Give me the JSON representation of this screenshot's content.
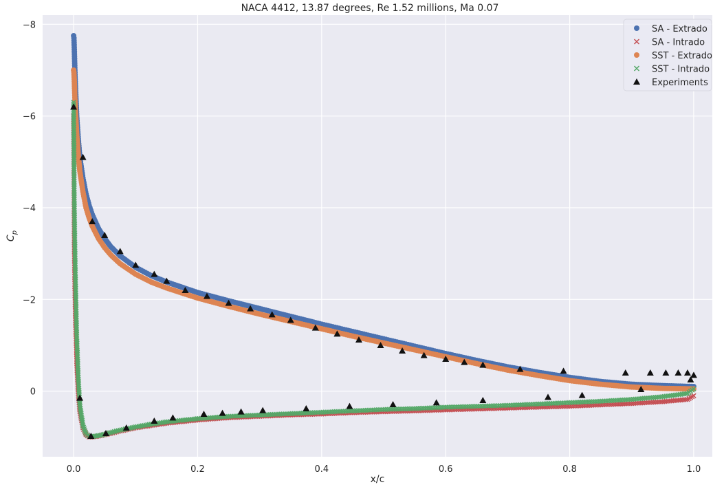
{
  "chart_data": {
    "type": "scatter",
    "title": "NACA 4412, 13.87 degrees, Re 1.52 millions, Ma 0.07",
    "xlabel": "x/c",
    "ylabel": "C_p",
    "xlim": [
      -0.05,
      1.03
    ],
    "ylim": [
      1.43,
      -8.2
    ],
    "y_inverted": true,
    "grid": true,
    "legend_position": "top-right",
    "x_ticks": [
      0.0,
      0.2,
      0.4,
      0.6,
      0.8,
      1.0
    ],
    "x_tick_labels": [
      "0.0",
      "0.2",
      "0.4",
      "0.6",
      "0.8",
      "1.0"
    ],
    "y_ticks": [
      -8,
      -6,
      -4,
      -2,
      0
    ],
    "y_tick_labels": [
      "−8",
      "−6",
      "−4",
      "−2",
      "0"
    ],
    "colors": {
      "background": "#eaeaf2",
      "grid": "#ffffff",
      "sa_extrado": "#4c72b0",
      "sa_intrado": "#c44e52",
      "sst_extrado": "#dd8452",
      "sst_intrado": "#55a868",
      "experiments": "#111111"
    },
    "series": [
      {
        "name": "SA - Extrado",
        "marker": "circle",
        "color": "#4c72b0",
        "x": [
          0.0,
          0.0005,
          0.001,
          0.002,
          0.003,
          0.005,
          0.0075,
          0.01,
          0.015,
          0.02,
          0.025,
          0.03,
          0.04,
          0.05,
          0.06,
          0.075,
          0.1,
          0.125,
          0.15,
          0.2,
          0.25,
          0.3,
          0.35,
          0.4,
          0.45,
          0.5,
          0.55,
          0.6,
          0.65,
          0.7,
          0.75,
          0.8,
          0.85,
          0.9,
          0.95,
          1.0
        ],
        "y": [
          -7.75,
          -7.7,
          -7.5,
          -7.0,
          -6.6,
          -6.0,
          -5.5,
          -5.1,
          -4.65,
          -4.3,
          -4.05,
          -3.85,
          -3.55,
          -3.33,
          -3.15,
          -2.95,
          -2.7,
          -2.52,
          -2.38,
          -2.15,
          -1.97,
          -1.8,
          -1.63,
          -1.46,
          -1.3,
          -1.14,
          -0.98,
          -0.82,
          -0.67,
          -0.53,
          -0.41,
          -0.3,
          -0.21,
          -0.15,
          -0.12,
          -0.1
        ]
      },
      {
        "name": "SA - Intrado",
        "marker": "x",
        "color": "#c44e52",
        "x": [
          0.0,
          0.0005,
          0.001,
          0.002,
          0.003,
          0.005,
          0.0075,
          0.01,
          0.015,
          0.02,
          0.025,
          0.03,
          0.04,
          0.05,
          0.06,
          0.075,
          0.1,
          0.125,
          0.15,
          0.2,
          0.25,
          0.3,
          0.35,
          0.4,
          0.45,
          0.5,
          0.55,
          0.6,
          0.65,
          0.7,
          0.75,
          0.8,
          0.85,
          0.9,
          0.95,
          0.99,
          1.0
        ],
        "y": [
          -6.0,
          -4.5,
          -3.2,
          -2.2,
          -1.5,
          -0.6,
          0.05,
          0.45,
          0.8,
          0.95,
          1.0,
          1.0,
          0.98,
          0.95,
          0.92,
          0.87,
          0.8,
          0.75,
          0.7,
          0.63,
          0.58,
          0.55,
          0.52,
          0.5,
          0.47,
          0.45,
          0.43,
          0.41,
          0.39,
          0.37,
          0.35,
          0.33,
          0.3,
          0.27,
          0.23,
          0.18,
          0.1
        ]
      },
      {
        "name": "SST - Extrado",
        "marker": "circle",
        "color": "#dd8452",
        "x": [
          0.0,
          0.0005,
          0.001,
          0.002,
          0.003,
          0.005,
          0.0075,
          0.01,
          0.015,
          0.02,
          0.025,
          0.03,
          0.04,
          0.05,
          0.06,
          0.075,
          0.1,
          0.125,
          0.15,
          0.2,
          0.25,
          0.3,
          0.35,
          0.4,
          0.45,
          0.5,
          0.55,
          0.6,
          0.65,
          0.7,
          0.75,
          0.8,
          0.85,
          0.9,
          0.95,
          1.0
        ],
        "y": [
          -7.0,
          -6.95,
          -6.8,
          -6.4,
          -6.1,
          -5.6,
          -5.15,
          -4.8,
          -4.35,
          -4.0,
          -3.78,
          -3.6,
          -3.33,
          -3.13,
          -2.97,
          -2.78,
          -2.55,
          -2.38,
          -2.25,
          -2.03,
          -1.85,
          -1.68,
          -1.52,
          -1.36,
          -1.2,
          -1.05,
          -0.9,
          -0.75,
          -0.6,
          -0.46,
          -0.34,
          -0.23,
          -0.15,
          -0.09,
          -0.06,
          -0.05
        ]
      },
      {
        "name": "SST - Intrado",
        "marker": "x",
        "color": "#55a868",
        "x": [
          0.0,
          0.0005,
          0.001,
          0.002,
          0.003,
          0.005,
          0.0075,
          0.01,
          0.015,
          0.02,
          0.025,
          0.03,
          0.04,
          0.05,
          0.06,
          0.075,
          0.1,
          0.125,
          0.15,
          0.2,
          0.25,
          0.3,
          0.35,
          0.4,
          0.45,
          0.5,
          0.55,
          0.6,
          0.65,
          0.7,
          0.75,
          0.8,
          0.85,
          0.9,
          0.95,
          0.99,
          1.0
        ],
        "y": [
          -6.3,
          -5.4,
          -4.3,
          -3.2,
          -2.4,
          -1.2,
          -0.3,
          0.3,
          0.75,
          0.93,
          0.98,
          0.99,
          0.97,
          0.94,
          0.9,
          0.85,
          0.78,
          0.72,
          0.67,
          0.6,
          0.55,
          0.52,
          0.49,
          0.46,
          0.43,
          0.4,
          0.38,
          0.35,
          0.33,
          0.31,
          0.28,
          0.25,
          0.22,
          0.18,
          0.12,
          0.05,
          -0.05
        ]
      },
      {
        "name": "Experiments",
        "marker": "triangle",
        "color": "#111111",
        "x": [
          0.0,
          0.015,
          0.03,
          0.05,
          0.075,
          0.1,
          0.13,
          0.15,
          0.18,
          0.215,
          0.25,
          0.285,
          0.32,
          0.35,
          0.39,
          0.425,
          0.46,
          0.495,
          0.53,
          0.565,
          0.6,
          0.63,
          0.66,
          0.72,
          0.79,
          0.89,
          0.93,
          0.955,
          0.975,
          0.99,
          1.0,
          0.01,
          0.028,
          0.052,
          0.085,
          0.13,
          0.16,
          0.21,
          0.24,
          0.27,
          0.305,
          0.375,
          0.445,
          0.515,
          0.585,
          0.66,
          0.765,
          0.82,
          0.915,
          0.995
        ],
        "y": [
          -6.2,
          -5.1,
          -3.7,
          -3.4,
          -3.05,
          -2.75,
          -2.55,
          -2.4,
          -2.2,
          -2.07,
          -1.92,
          -1.8,
          -1.67,
          -1.55,
          -1.38,
          -1.25,
          -1.12,
          -1.0,
          -0.88,
          -0.78,
          -0.7,
          -0.63,
          -0.57,
          -0.48,
          -0.44,
          -0.4,
          -0.4,
          -0.4,
          -0.4,
          -0.4,
          -0.35,
          0.15,
          0.98,
          0.92,
          0.8,
          0.65,
          0.58,
          0.5,
          0.48,
          0.45,
          0.42,
          0.38,
          0.33,
          0.29,
          0.25,
          0.2,
          0.13,
          0.09,
          -0.04,
          -0.25
        ]
      }
    ]
  }
}
